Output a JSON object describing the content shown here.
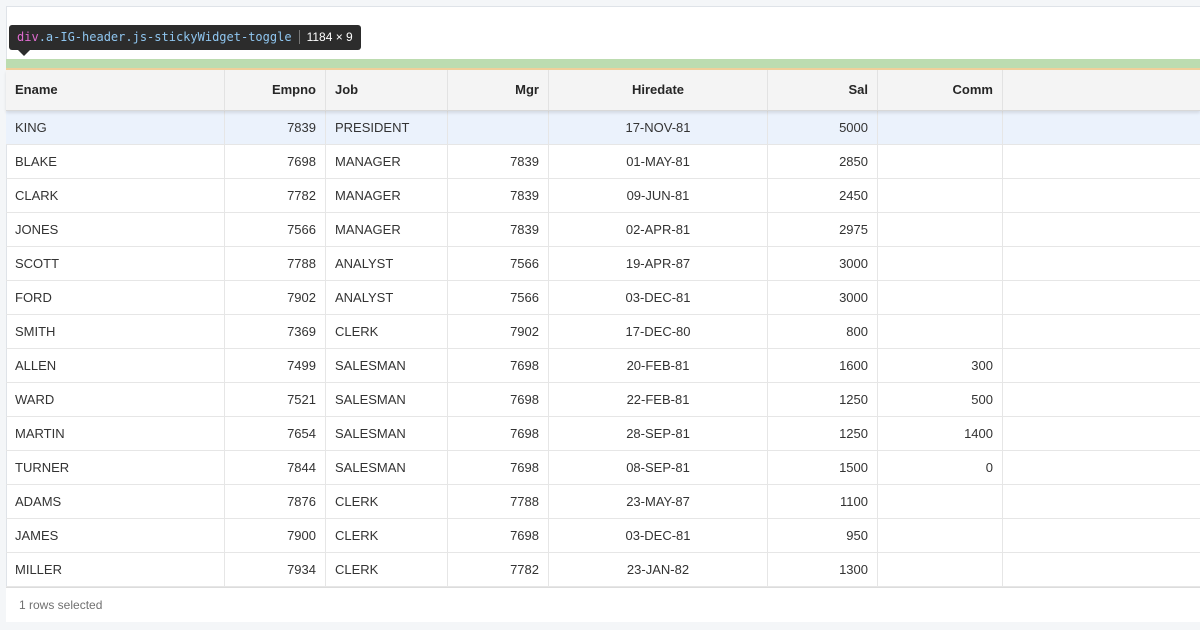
{
  "devtools_tooltip": {
    "tag": "div",
    "classes": ".a-IG-header.js-stickyWidget-toggle",
    "dimensions": "1184 × 9"
  },
  "grid": {
    "columns": [
      "Ename",
      "Empno",
      "Job",
      "Mgr",
      "Hiredate",
      "Sal",
      "Comm"
    ],
    "rows": [
      {
        "ename": "KING",
        "empno": "7839",
        "job": "PRESIDENT",
        "mgr": "",
        "hiredate": "17-NOV-81",
        "sal": "5000",
        "comm": "",
        "selected": true
      },
      {
        "ename": "BLAKE",
        "empno": "7698",
        "job": "MANAGER",
        "mgr": "7839",
        "hiredate": "01-MAY-81",
        "sal": "2850",
        "comm": ""
      },
      {
        "ename": "CLARK",
        "empno": "7782",
        "job": "MANAGER",
        "mgr": "7839",
        "hiredate": "09-JUN-81",
        "sal": "2450",
        "comm": ""
      },
      {
        "ename": "JONES",
        "empno": "7566",
        "job": "MANAGER",
        "mgr": "7839",
        "hiredate": "02-APR-81",
        "sal": "2975",
        "comm": ""
      },
      {
        "ename": "SCOTT",
        "empno": "7788",
        "job": "ANALYST",
        "mgr": "7566",
        "hiredate": "19-APR-87",
        "sal": "3000",
        "comm": ""
      },
      {
        "ename": "FORD",
        "empno": "7902",
        "job": "ANALYST",
        "mgr": "7566",
        "hiredate": "03-DEC-81",
        "sal": "3000",
        "comm": ""
      },
      {
        "ename": "SMITH",
        "empno": "7369",
        "job": "CLERK",
        "mgr": "7902",
        "hiredate": "17-DEC-80",
        "sal": "800",
        "comm": ""
      },
      {
        "ename": "ALLEN",
        "empno": "7499",
        "job": "SALESMAN",
        "mgr": "7698",
        "hiredate": "20-FEB-81",
        "sal": "1600",
        "comm": "300"
      },
      {
        "ename": "WARD",
        "empno": "7521",
        "job": "SALESMAN",
        "mgr": "7698",
        "hiredate": "22-FEB-81",
        "sal": "1250",
        "comm": "500"
      },
      {
        "ename": "MARTIN",
        "empno": "7654",
        "job": "SALESMAN",
        "mgr": "7698",
        "hiredate": "28-SEP-81",
        "sal": "1250",
        "comm": "1400"
      },
      {
        "ename": "TURNER",
        "empno": "7844",
        "job": "SALESMAN",
        "mgr": "7698",
        "hiredate": "08-SEP-81",
        "sal": "1500",
        "comm": "0"
      },
      {
        "ename": "ADAMS",
        "empno": "7876",
        "job": "CLERK",
        "mgr": "7788",
        "hiredate": "23-MAY-87",
        "sal": "1100",
        "comm": ""
      },
      {
        "ename": "JAMES",
        "empno": "7900",
        "job": "CLERK",
        "mgr": "7698",
        "hiredate": "03-DEC-81",
        "sal": "950",
        "comm": ""
      },
      {
        "ename": "MILLER",
        "empno": "7934",
        "job": "CLERK",
        "mgr": "7782",
        "hiredate": "23-JAN-82",
        "sal": "1300",
        "comm": ""
      }
    ]
  },
  "footer": {
    "status": "1 rows selected"
  },
  "colors": {
    "selected_row": "#ebf2fc",
    "highlight_overlay": "#bcdcb0",
    "tooltip_bg": "#2c2c2c"
  }
}
